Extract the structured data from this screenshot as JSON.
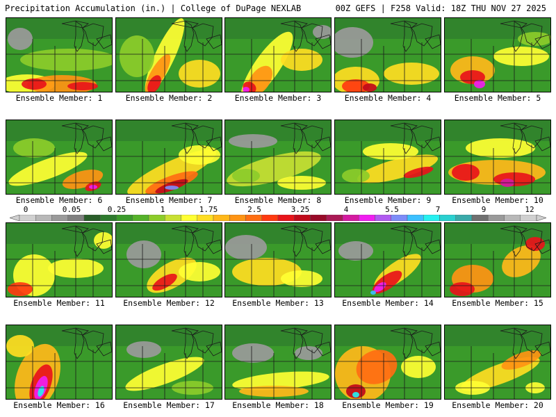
{
  "header": {
    "left": "Precipitation Accumulation (in.) | College of DuPage NEXLAB",
    "right": "00Z GEFS | F258 Valid: 18Z THU NOV 27 2025"
  },
  "colors": {
    "scale": [
      "#d0d0d0",
      "#b8b8b8",
      "#9a9a9a",
      "#808080",
      "#2a5e2a",
      "#2e7a2e",
      "#3a9a2a",
      "#55b22a",
      "#8ccc2a",
      "#c8e033",
      "#ffff33",
      "#ffdd22",
      "#ffb81a",
      "#ff9414",
      "#ff6e12",
      "#ff3a10",
      "#e8141a",
      "#c00a1a",
      "#980a28",
      "#aa1a55",
      "#d41ba0",
      "#f01ef0",
      "#b05af0",
      "#7d8cf8",
      "#3cc0ff",
      "#26f0f0",
      "#2ad0d0",
      "#3aaaaa",
      "#707070",
      "#9a9a9a",
      "#b8b8b8",
      "#d0d0d0"
    ]
  },
  "scale_labels": [
    "0",
    "0.05",
    "0.25",
    "1",
    "1.75",
    "2.5",
    "3.25",
    "4",
    "5.5",
    "7",
    "9",
    "12"
  ],
  "members": [
    {
      "label": "Ensemble Member: 1"
    },
    {
      "label": "Ensemble Member: 2"
    },
    {
      "label": "Ensemble Member: 3"
    },
    {
      "label": "Ensemble Member: 4"
    },
    {
      "label": "Ensemble Member: 5"
    },
    {
      "label": "Ensemble Member: 6"
    },
    {
      "label": "Ensemble Member: 7"
    },
    {
      "label": "Ensemble Member: 8"
    },
    {
      "label": "Ensemble Member: 9"
    },
    {
      "label": "Ensemble Member: 10"
    },
    {
      "label": "Ensemble Member: 11"
    },
    {
      "label": "Ensemble Member: 12"
    },
    {
      "label": "Ensemble Member: 13"
    },
    {
      "label": "Ensemble Member: 14"
    },
    {
      "label": "Ensemble Member: 15"
    },
    {
      "label": "Ensemble Member: 16"
    },
    {
      "label": "Ensemble Member: 17"
    },
    {
      "label": "Ensemble Member: 18"
    },
    {
      "label": "Ensemble Member: 19"
    },
    {
      "label": "Ensemble Member: 20"
    }
  ]
}
